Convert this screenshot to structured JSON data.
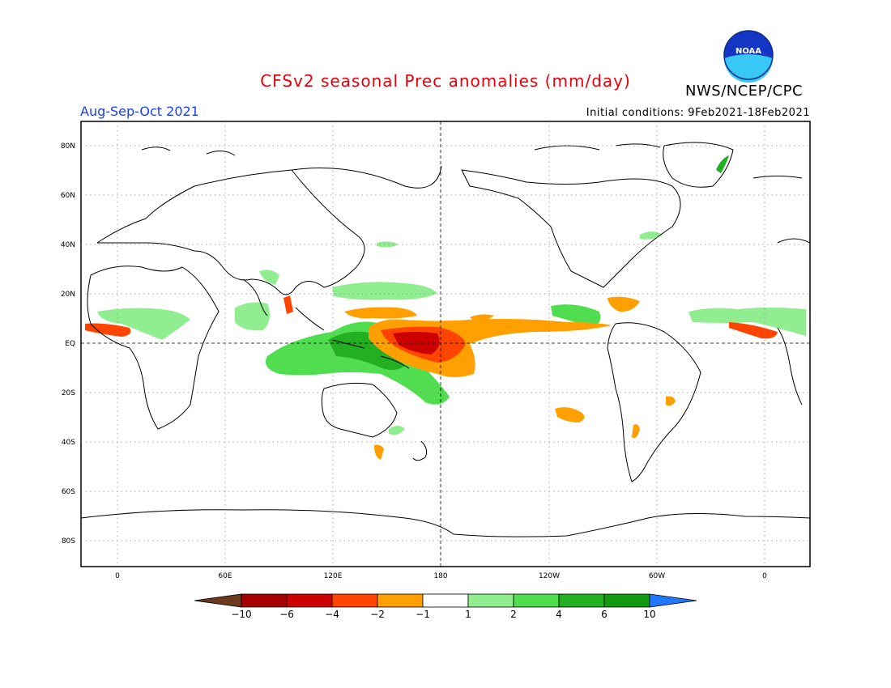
{
  "header": {
    "title": "CFSv2 seasonal Prec anomalies (mm/day)",
    "agency": "NWS/NCEP/CPC",
    "logo_text": "NOAA",
    "season": "Aug-Sep-Oct 2021",
    "initial_conditions": "Initial conditions: 9Feb2021-18Feb2021"
  },
  "axes": {
    "lat_ticks": [
      "80N",
      "60N",
      "40N",
      "20N",
      "EQ",
      "20S",
      "40S",
      "60S",
      "80S"
    ],
    "lon_ticks": [
      "0",
      "60E",
      "120E",
      "180",
      "120W",
      "60W",
      "0"
    ]
  },
  "colorbar": {
    "labels": [
      "-10",
      "-6",
      "-4",
      "-2",
      "-1",
      "1",
      "2",
      "4",
      "6",
      "10"
    ],
    "colors": [
      "#6e3a1e",
      "#a40000",
      "#cc0000",
      "#ff4400",
      "#ffa000",
      "#ffffff",
      "#90ee90",
      "#50dd50",
      "#22b022",
      "#119911",
      "#2277ff"
    ]
  },
  "colors": {
    "title": "#e8000b",
    "season": "#1a3cff",
    "noaa_blue": "#1535c4",
    "noaa_cyan": "#37c8f5"
  }
}
